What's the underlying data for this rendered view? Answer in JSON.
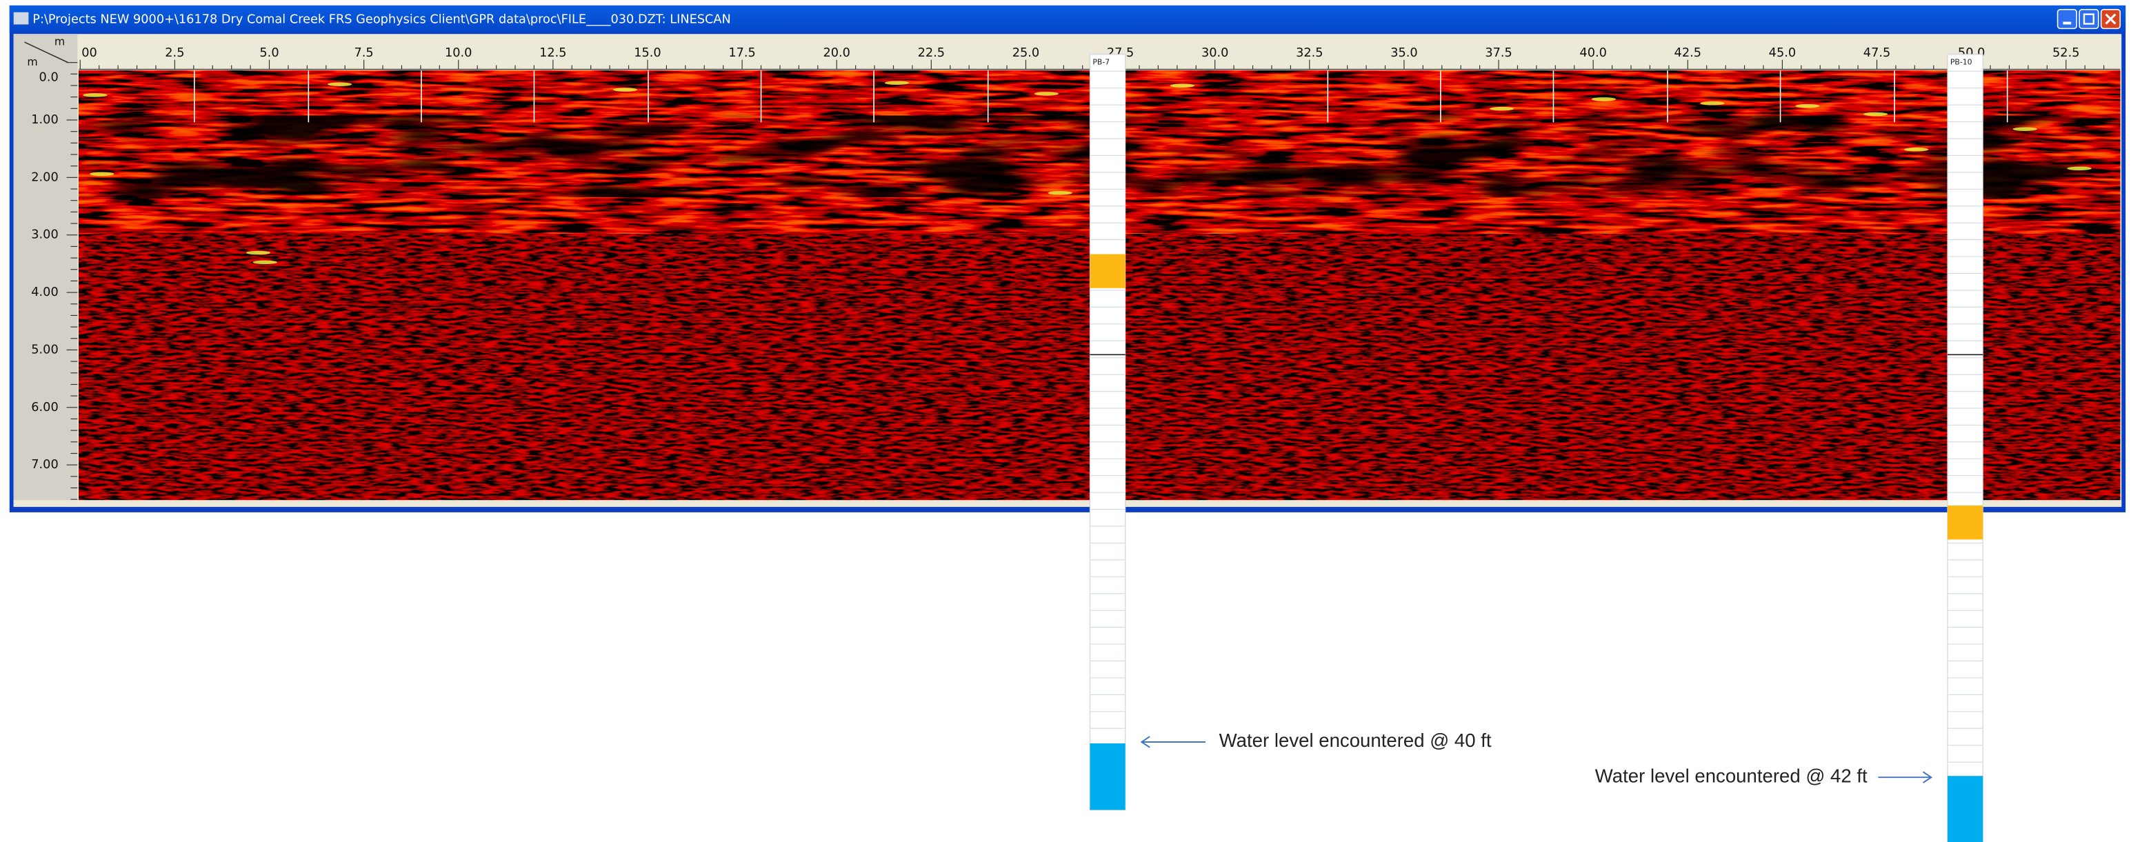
{
  "window": {
    "title": "P:\\Projects NEW 9000+\\16178 Dry Comal Creek FRS Geophysics Client\\GPR data\\proc\\FILE____030.DZT:  LINESCAN"
  },
  "axes": {
    "x_unit": "m",
    "y_unit": "m",
    "x_labels": [
      "00",
      "2.5",
      "5.0",
      "7.5",
      "10.0",
      "12.5",
      "15.0",
      "17.5",
      "20.0",
      "22.5",
      "25.0",
      "27.5",
      "30.0",
      "32.5",
      "35.0",
      "37.5",
      "40.0",
      "42.5",
      "45.0",
      "47.5",
      "50.0",
      "52.5"
    ],
    "y_labels": [
      "0.0",
      "1.00",
      "2.00",
      "3.00",
      "4.00",
      "5.00",
      "6.00",
      "7.00"
    ]
  },
  "boreholes": [
    {
      "label": "PB-7"
    },
    {
      "label": "PB-10"
    }
  ],
  "annotations": [
    {
      "text": "Water level encountered @ 40 ft"
    },
    {
      "text": "Water level encountered @ 42 ft"
    }
  ]
}
